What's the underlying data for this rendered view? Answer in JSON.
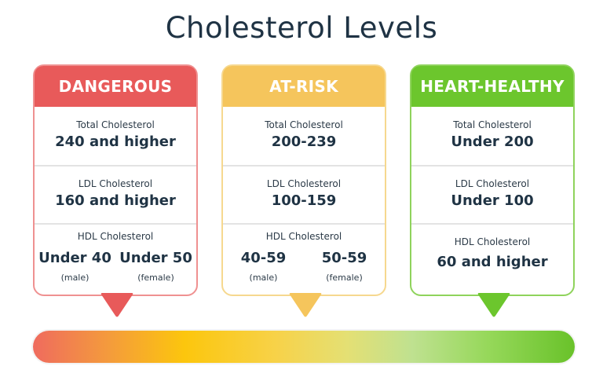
{
  "title": "Cholesterol Levels",
  "colors": {
    "dangerous": "#e85a5a",
    "dangerous_border": "#ef9191",
    "at_risk": "#f5c55c",
    "at_risk_border": "#f6d88f",
    "heart_healthy": "#6cc62d",
    "heart_healthy_border": "#8fd35c",
    "divider": "#e3e3e3"
  },
  "cards": [
    {
      "header": "DANGEROUS",
      "total_label": "Total Cholesterol",
      "total_value": "240 and higher",
      "ldl_label": "LDL Cholesterol",
      "ldl_value": "160 and higher",
      "hdl_label": "HDL Cholesterol",
      "hdl_male_value": "Under 40",
      "hdl_male_label": "(male)",
      "hdl_female_value": "Under 50",
      "hdl_female_label": "(female)"
    },
    {
      "header": "AT-RISK",
      "total_label": "Total Cholesterol",
      "total_value": "200-239",
      "ldl_label": "LDL Cholesterol",
      "ldl_value": "100-159",
      "hdl_label": "HDL Cholesterol",
      "hdl_male_value": "40-59",
      "hdl_male_label": "(male)",
      "hdl_female_value": "50-59",
      "hdl_female_label": "(female)"
    },
    {
      "header": "HEART-HEALTHY",
      "total_label": "Total Cholesterol",
      "total_value": "Under 200",
      "ldl_label": "LDL Cholesterol",
      "ldl_value": "Under 100",
      "hdl_label": "HDL Cholesterol",
      "hdl_value": "60 and higher"
    }
  ],
  "gauge": {
    "colors": [
      "#ef6b5e",
      "#fcc60d",
      "#69c22a"
    ]
  }
}
